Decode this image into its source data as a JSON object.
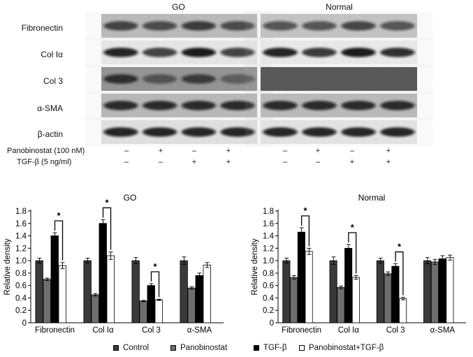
{
  "blot": {
    "groups": [
      "GO",
      "Normal"
    ],
    "rows": [
      "Fibronectin",
      "Col Iα",
      "Col 3",
      "α-SMA",
      "β-actin"
    ],
    "treatments": [
      {
        "label": "Panobinostat (100 nM)",
        "signs": [
          "–",
          "+",
          "–",
          "+"
        ]
      },
      {
        "label": "TGF-β  (5 ng/ml)",
        "signs": [
          "–",
          "–",
          "+",
          "+"
        ]
      }
    ]
  },
  "legend": [
    {
      "label": "Control",
      "color": "#3a3a3a"
    },
    {
      "label": "Panobinostat",
      "color": "#6e6e6e"
    },
    {
      "label": "TGF-β",
      "color": "#000000"
    },
    {
      "label": "Panobinostat+TGF-β",
      "color": "#ffffff"
    }
  ],
  "chart_data": [
    {
      "type": "bar",
      "title": "GO",
      "ylabel": "Relative density",
      "categories": [
        "Fibronectin",
        "Col Iα",
        "Col 3",
        "α-SMA"
      ],
      "ylim": [
        0,
        1.8
      ],
      "yticks": [
        "0",
        "0.2",
        "0.4",
        "0.6",
        "0.8",
        "1.0",
        "1.2",
        "1.4",
        "1.6",
        "1.8"
      ],
      "series": [
        {
          "name": "Control",
          "values": [
            1.0,
            1.0,
            1.0,
            1.0
          ],
          "errors": [
            0.04,
            0.04,
            0.05,
            0.06
          ]
        },
        {
          "name": "Panobinostat",
          "values": [
            0.7,
            0.45,
            0.35,
            0.56
          ],
          "errors": [
            0.02,
            0.02,
            0.01,
            0.02
          ]
        },
        {
          "name": "TGF-β",
          "values": [
            1.4,
            1.6,
            0.6,
            0.76
          ],
          "errors": [
            0.05,
            0.06,
            0.03,
            0.04
          ]
        },
        {
          "name": "Panobinostat+TGF-β",
          "values": [
            0.92,
            1.08,
            0.37,
            0.93
          ],
          "errors": [
            0.05,
            0.06,
            0.01,
            0.04
          ]
        }
      ],
      "significance": [
        {
          "category": 0,
          "label": "*"
        },
        {
          "category": 1,
          "label": "*"
        },
        {
          "category": 2,
          "label": "*"
        }
      ]
    },
    {
      "type": "bar",
      "title": "Normal",
      "ylabel": "Relative density",
      "categories": [
        "Fibronectin",
        "Col Iα",
        "Col 3",
        "α-SMA"
      ],
      "ylim": [
        0,
        1.8
      ],
      "yticks": [
        "0",
        "0.2",
        "0.4",
        "0.6",
        "0.8",
        "1.0",
        "1.2",
        "1.4",
        "1.6",
        "1.8"
      ],
      "series": [
        {
          "name": "Control",
          "values": [
            1.0,
            1.0,
            1.0,
            1.0
          ],
          "errors": [
            0.04,
            0.06,
            0.04,
            0.05
          ]
        },
        {
          "name": "Panobinostat",
          "values": [
            0.73,
            0.57,
            0.79,
            0.98
          ],
          "errors": [
            0.03,
            0.02,
            0.03,
            0.04
          ]
        },
        {
          "name": "TGF-β",
          "values": [
            1.46,
            1.2,
            0.91,
            1.03
          ],
          "errors": [
            0.07,
            0.06,
            0.04,
            0.05
          ]
        },
        {
          "name": "Panobinostat+TGF-β",
          "values": [
            1.15,
            0.73,
            0.39,
            1.05
          ],
          "errors": [
            0.05,
            0.03,
            0.02,
            0.04
          ]
        }
      ],
      "significance": [
        {
          "category": 0,
          "label": "*"
        },
        {
          "category": 1,
          "label": "*"
        },
        {
          "category": 2,
          "label": "*"
        }
      ]
    }
  ]
}
